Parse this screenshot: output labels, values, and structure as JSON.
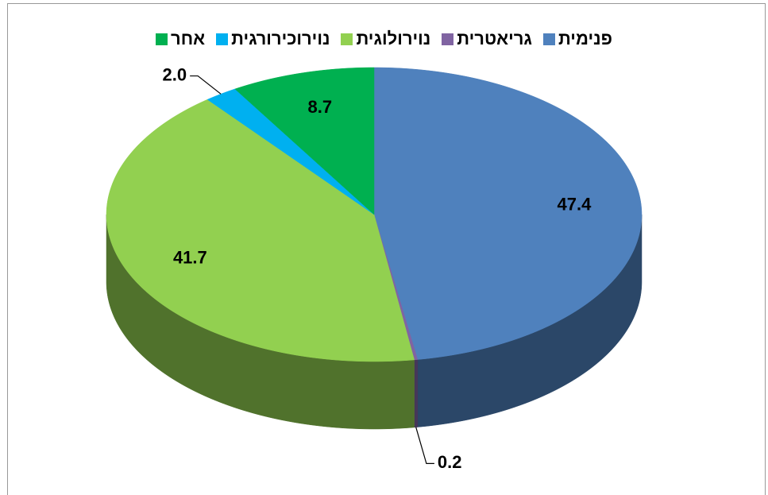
{
  "chart_data": {
    "type": "pie3d",
    "categories": [
      "פנימית",
      "גריאטרית",
      "נוירולוגית",
      "נוירוכירורגית",
      "אחר"
    ],
    "values": [
      47.4,
      0.2,
      41.7,
      2.0,
      8.7
    ],
    "value_labels": [
      "47.4",
      "0.2",
      "41.7",
      "2.0",
      "8.7"
    ],
    "colors": [
      "#4f81bd",
      "#8064a2",
      "#92d050",
      "#00b0f0",
      "#00b050"
    ],
    "legend": "top"
  }
}
